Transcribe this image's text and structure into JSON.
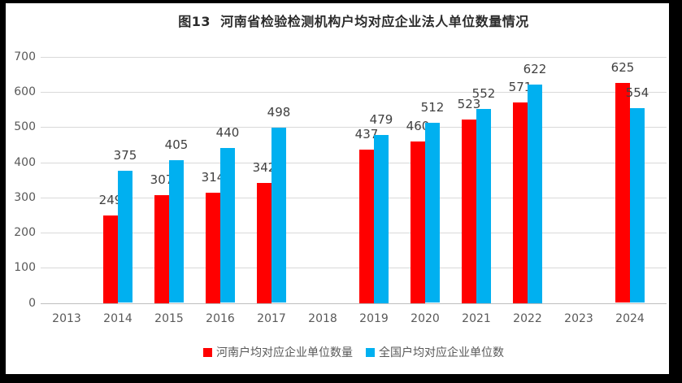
{
  "chart_data": {
    "type": "bar",
    "title": "图13  河南省检验检测机构户均对应企业法人单位数量情况",
    "categories": [
      "2013",
      "2014",
      "2015",
      "2016",
      "2017",
      "2018",
      "2019",
      "2020",
      "2021",
      "2022",
      "2023",
      "2024"
    ],
    "series": [
      {
        "name": "河南户均对应企业单位数量",
        "color": "#FF0000",
        "values": [
          null,
          249,
          307,
          314,
          342,
          null,
          437,
          460,
          523,
          571,
          null,
          625
        ]
      },
      {
        "name": "全国户均对应企业单位数",
        "color": "#00B0F0",
        "values": [
          null,
          375,
          405,
          440,
          498,
          null,
          479,
          512,
          552,
          622,
          null,
          554
        ]
      }
    ],
    "ylim": [
      0,
      700
    ],
    "yticks": [
      0,
      100,
      200,
      300,
      400,
      500,
      600,
      700
    ],
    "grid": true,
    "legend_position": "bottom",
    "data_labels": true
  },
  "colors": {
    "henan_bar": "#FF0000",
    "national_bar": "#00B0F0",
    "gridline": "#D9D9D9",
    "axis_text": "#595959",
    "label_text": "#404040",
    "frame": "#000000"
  }
}
